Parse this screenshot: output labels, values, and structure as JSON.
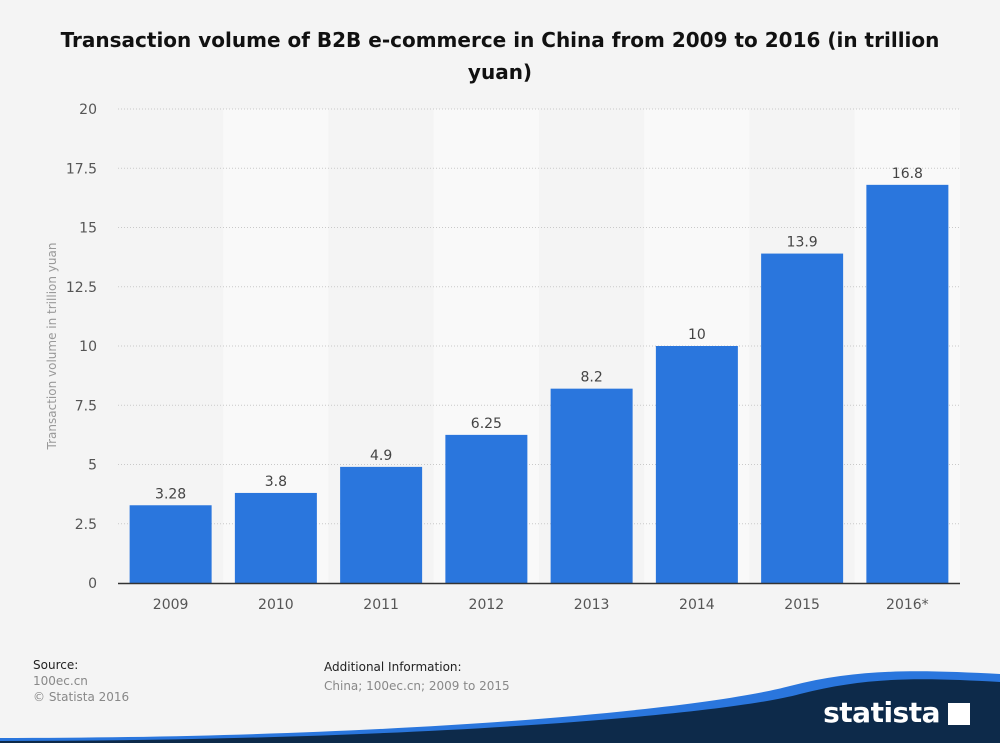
{
  "title": "Transaction volume of B2B e-commerce in China from 2009 to 2016 (in trillion yuan)",
  "source_heading": "Source:",
  "source_lines": [
    "100ec.cn",
    "© Statista 2016"
  ],
  "additional_heading": "Additional Information:",
  "additional_text": "China; 100ec.cn; 2009 to 2015",
  "brand": "statista",
  "colors": {
    "bar": "#2a76dd",
    "logo_band": "#0d2a4a",
    "logo_accent": "#2a76dd"
  },
  "chart_data": {
    "type": "bar",
    "categories": [
      "2009",
      "2010",
      "2011",
      "2012",
      "2013",
      "2014",
      "2015",
      "2016*"
    ],
    "values": [
      3.28,
      3.8,
      4.9,
      6.25,
      8.2,
      10,
      13.9,
      16.8
    ],
    "value_labels": [
      "3.28",
      "3.8",
      "4.9",
      "6.25",
      "8.2",
      "10",
      "13.9",
      "16.8"
    ],
    "title": "Transaction volume of B2B e-commerce in China from 2009 to 2016 (in trillion yuan)",
    "xlabel": "",
    "ylabel": "Transaction volume in trillion yuan",
    "ylim": [
      0,
      20
    ],
    "yticks": [
      0,
      2.5,
      5,
      7.5,
      10,
      12.5,
      15,
      17.5,
      20
    ],
    "ytick_labels": [
      "0",
      "2.5",
      "5",
      "7.5",
      "10",
      "12.5",
      "15",
      "17.5",
      "20"
    ],
    "grid": true
  }
}
